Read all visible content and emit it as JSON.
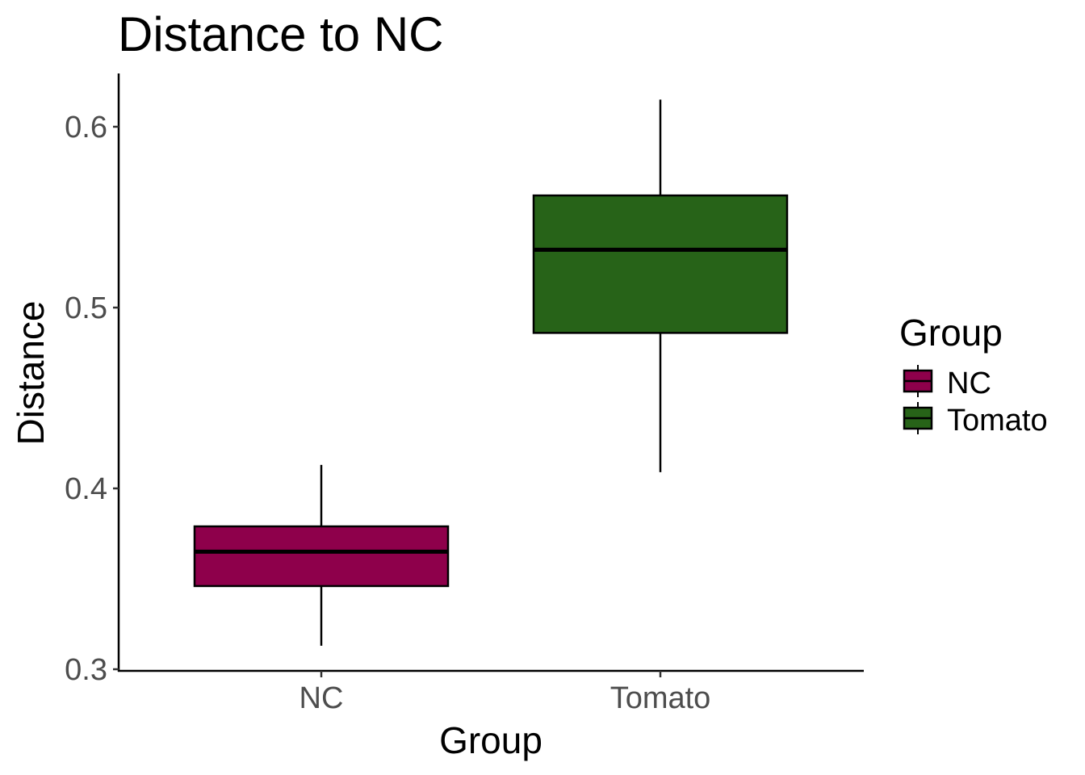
{
  "chart_data": {
    "type": "box",
    "title": "Distance to NC",
    "xlabel": "Group",
    "ylabel": "Distance",
    "ylim": [
      0.297,
      0.63
    ],
    "yticks": [
      0.3,
      0.4,
      0.5,
      0.6
    ],
    "ytick_labels": [
      "0.3",
      "0.4",
      "0.5",
      "0.6"
    ],
    "categories": [
      "NC",
      "Tomato"
    ],
    "boxes": [
      {
        "group": "NC",
        "whisker_low": 0.313,
        "q1": 0.346,
        "median": 0.365,
        "q3": 0.379,
        "whisker_high": 0.413,
        "color": "#8e004b"
      },
      {
        "group": "Tomato",
        "whisker_low": 0.409,
        "q1": 0.486,
        "median": 0.532,
        "q3": 0.562,
        "whisker_high": 0.615,
        "color": "#276318"
      }
    ],
    "legend": {
      "title": "Group",
      "position": "right",
      "entries": [
        {
          "label": "NC",
          "color": "#8e004b"
        },
        {
          "label": "Tomato",
          "color": "#276318"
        }
      ]
    },
    "grid": false
  }
}
